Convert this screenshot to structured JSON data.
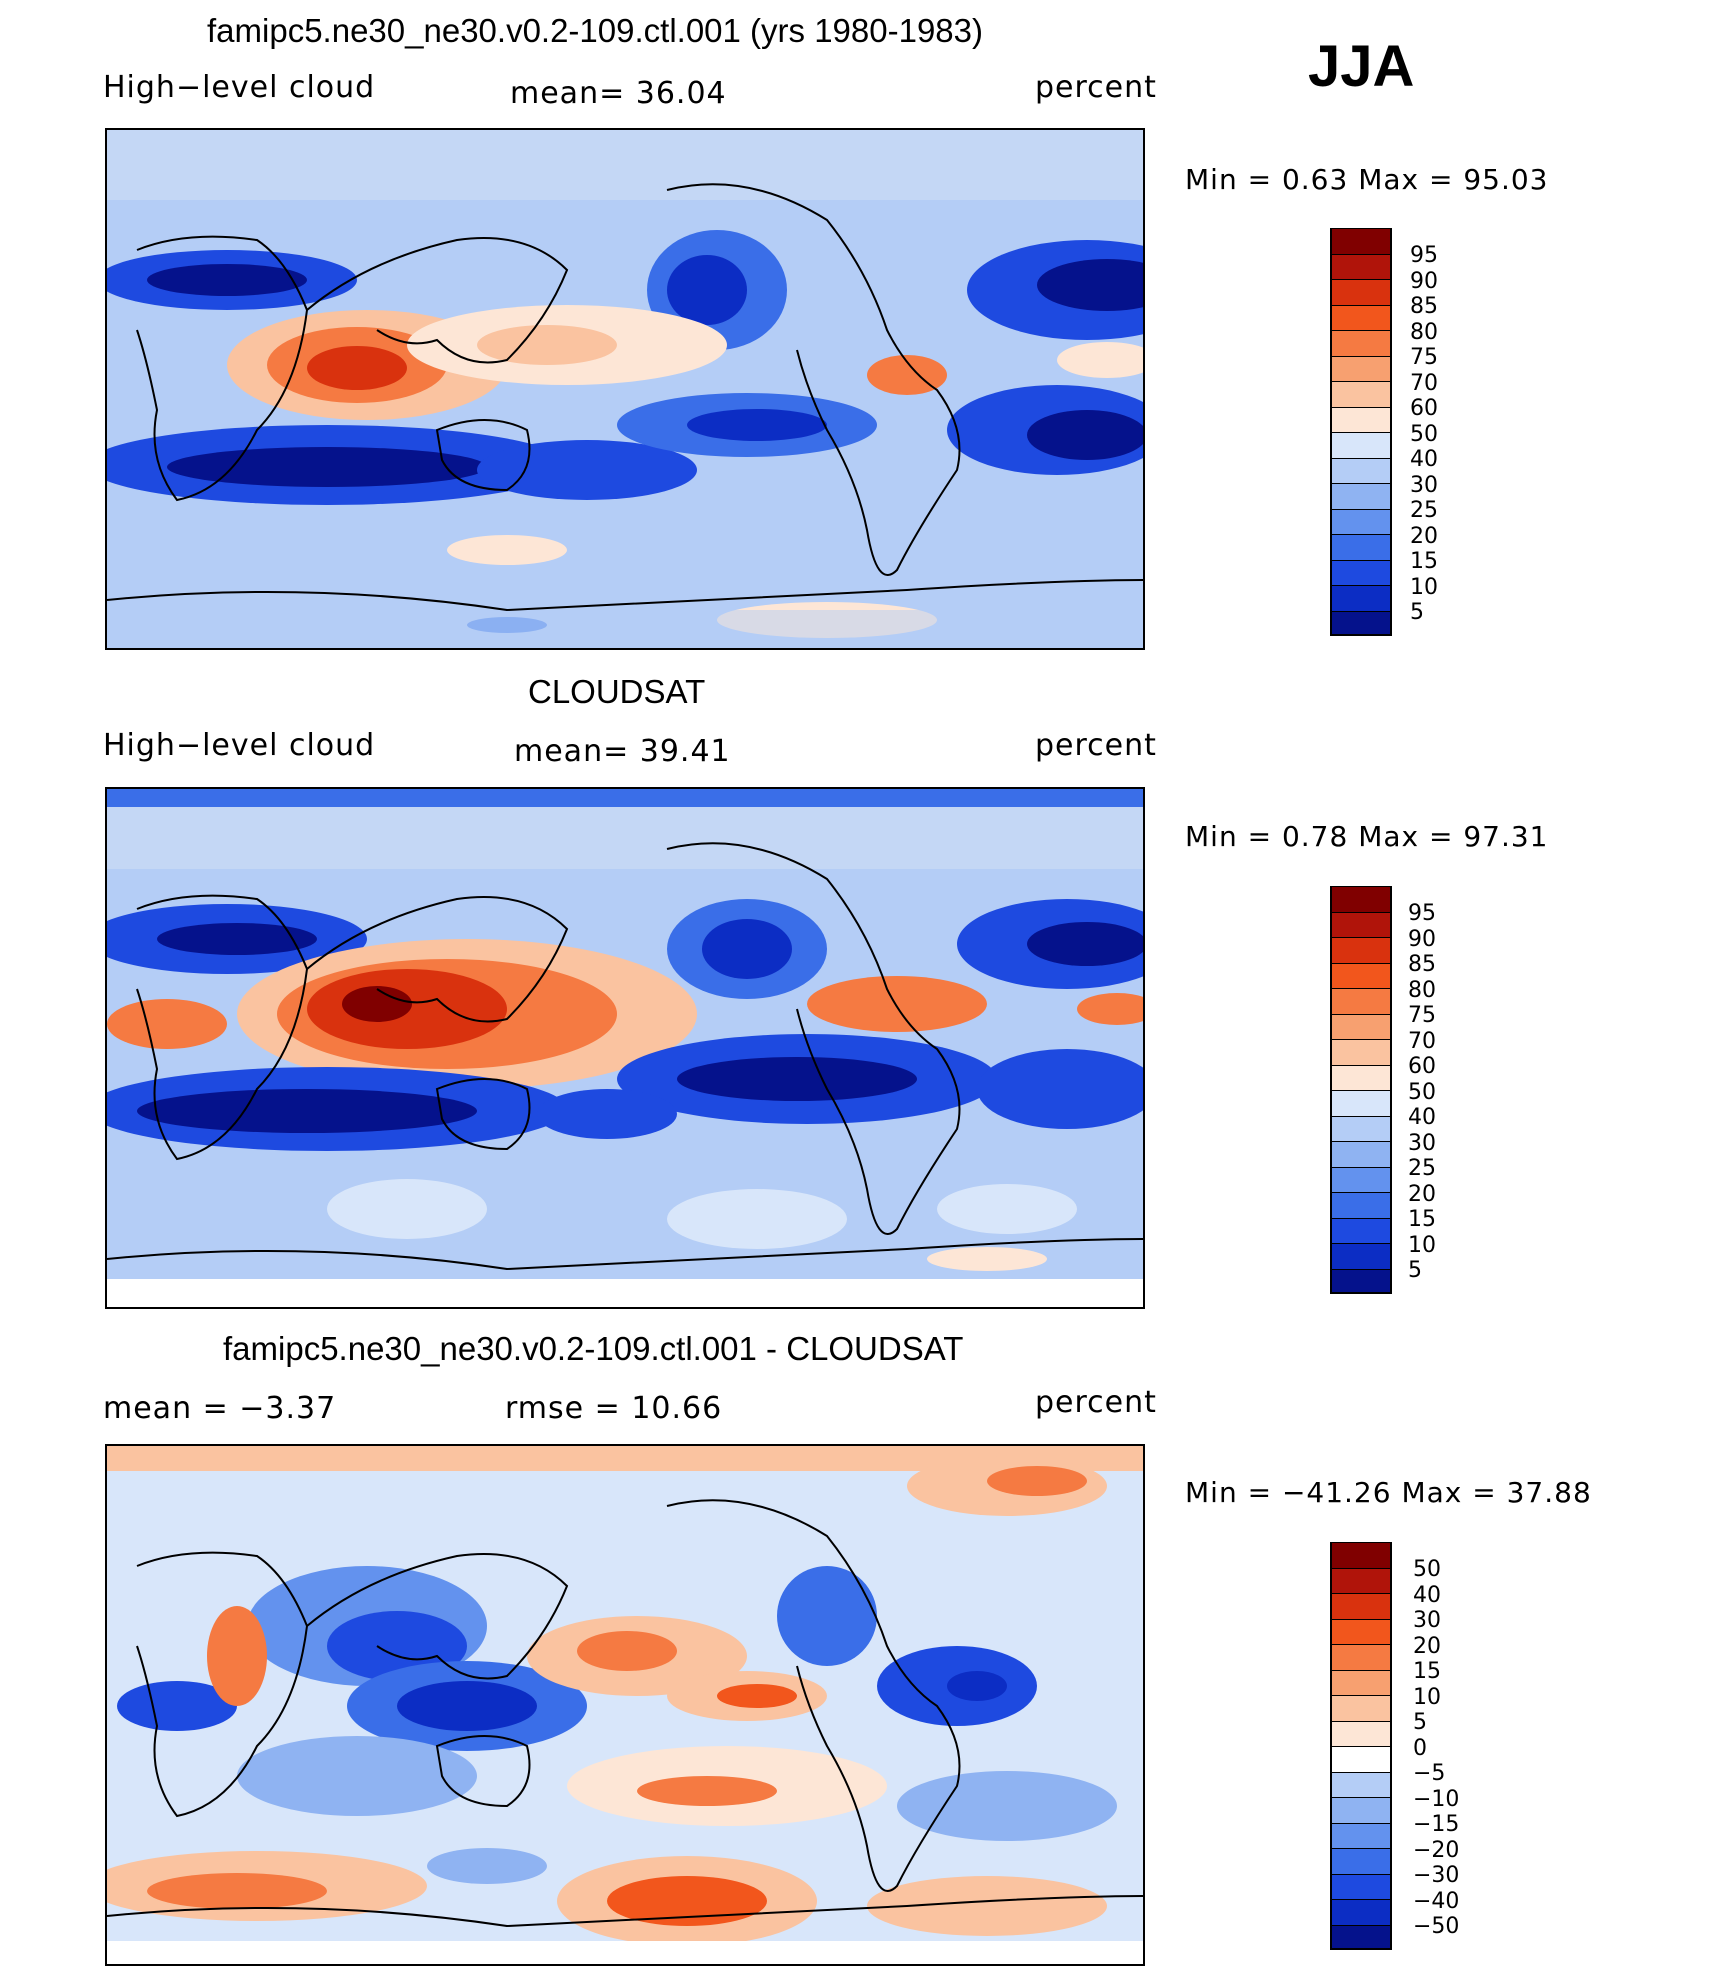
{
  "season": "JJA",
  "panels": [
    {
      "title": "famipc5.ne30_ne30.v0.2-109.ctl.001 (yrs 1980-1983)",
      "left_label": "High−level cloud",
      "center_label": "mean=   36.04",
      "right_label": "percent",
      "minmax": "Min  =     0.63  Max  =    95.03",
      "colorbar": {
        "labels": [
          "95",
          "90",
          "85",
          "80",
          "75",
          "70",
          "60",
          "50",
          "40",
          "30",
          "25",
          "20",
          "15",
          "10",
          "5"
        ],
        "colors": [
          "#800000",
          "#b0140a",
          "#d9320e",
          "#f2561c",
          "#f57a42",
          "#f7a070",
          "#fac3a0",
          "#fde6d6",
          "#d8e6fa",
          "#b4cdf6",
          "#8fb3f2",
          "#6392ee",
          "#3a6ee8",
          "#1e4ae0",
          "#0c2dc4",
          "#05128c"
        ]
      }
    },
    {
      "title": "CLOUDSAT",
      "left_label": "High−level cloud",
      "center_label": "mean=   39.41",
      "right_label": "percent",
      "minmax": "Min  =     0.78  Max  =    97.31",
      "colorbar": {
        "labels": [
          "95",
          "90",
          "85",
          "80",
          "75",
          "70",
          "60",
          "50",
          "40",
          "30",
          "25",
          "20",
          "15",
          "10",
          "5"
        ],
        "colors": [
          "#800000",
          "#b0140a",
          "#d9320e",
          "#f2561c",
          "#f57a42",
          "#f7a070",
          "#fac3a0",
          "#fde6d6",
          "#d8e6fa",
          "#b4cdf6",
          "#8fb3f2",
          "#6392ee",
          "#3a6ee8",
          "#1e4ae0",
          "#0c2dc4",
          "#05128c"
        ]
      }
    },
    {
      "title": "famipc5.ne30_ne30.v0.2-109.ctl.001 - CLOUDSAT",
      "left_label": "mean  =    −3.37",
      "center_label": "rmse  =    10.66",
      "right_label": "percent",
      "minmax": "Min  = −41.26  Max  =    37.88",
      "colorbar": {
        "labels": [
          "50",
          "40",
          "30",
          "20",
          "15",
          "10",
          "5",
          "0",
          "−5",
          "−10",
          "−15",
          "−20",
          "−30",
          "−40",
          "−50"
        ],
        "colors": [
          "#800000",
          "#b0140a",
          "#d9320e",
          "#f2561c",
          "#f57a42",
          "#f7a070",
          "#fac3a0",
          "#fde6d6",
          "#ffffff",
          "#b4cdf6",
          "#8fb3f2",
          "#6392ee",
          "#3a6ee8",
          "#1e4ae0",
          "#0c2dc4",
          "#05128c"
        ]
      }
    }
  ]
}
